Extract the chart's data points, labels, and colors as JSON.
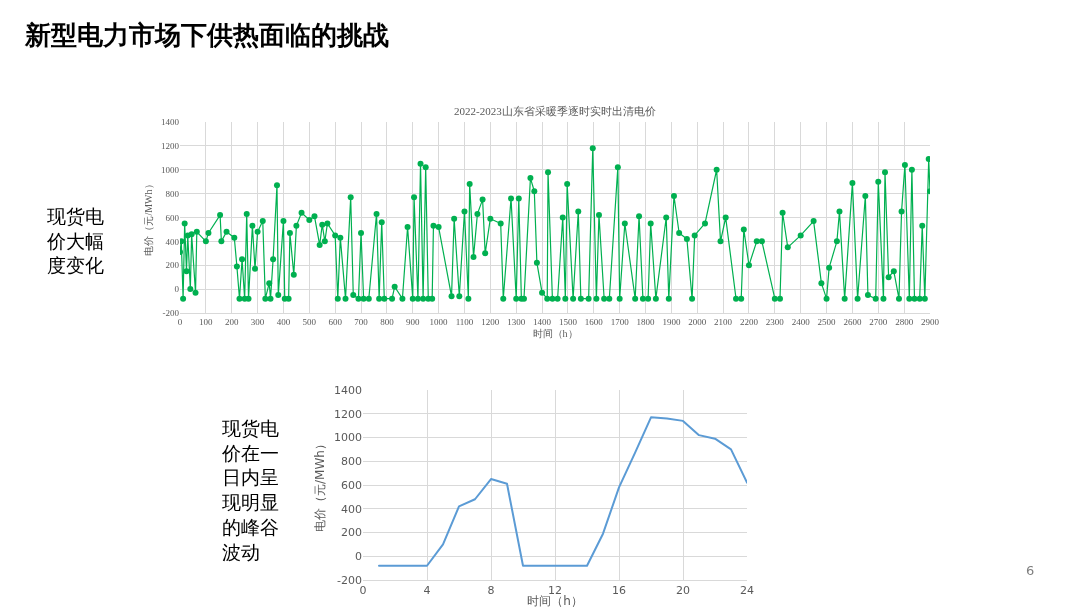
{
  "chart_data": [
    {
      "type": "line",
      "title": "2022-2023山东省采暖季逐时实时出清电价",
      "xlabel": "时间（h）",
      "ylabel": "电价（元/MWh）",
      "annotations": [
        "新型电力市场下供热面临的挑战",
        "现货电价大幅度变化"
      ],
      "series": [
        {
          "color": "#00b050",
          "x": [
            0,
            5,
            12,
            18,
            25,
            30,
            40,
            45,
            60,
            65,
            100,
            110,
            155,
            160,
            180,
            210,
            220,
            230,
            240,
            250,
            258,
            265,
            280,
            290,
            300,
            320,
            330,
            345,
            350,
            360,
            375,
            380,
            400,
            405,
            420,
            425,
            440,
            450,
            470,
            500,
            520,
            540,
            550,
            560,
            570,
            600,
            610,
            620,
            640,
            660,
            670,
            690,
            700,
            710,
            730,
            760,
            770,
            780,
            790,
            820,
            830,
            860,
            880,
            900,
            905,
            920,
            930,
            940,
            950,
            960,
            975,
            980,
            1000,
            1050,
            1060,
            1080,
            1100,
            1115,
            1120,
            1135,
            1150,
            1170,
            1180,
            1200,
            1240,
            1250,
            1280,
            1300,
            1310,
            1320,
            1330,
            1355,
            1370,
            1380,
            1400,
            1420,
            1423,
            1440,
            1460,
            1480,
            1490,
            1497,
            1520,
            1540,
            1550,
            1580,
            1596,
            1610,
            1620,
            1640,
            1660,
            1693,
            1700,
            1720,
            1760,
            1775,
            1790,
            1810,
            1820,
            1840,
            1880,
            1890,
            1910,
            1930,
            1960,
            1980,
            1990,
            2030,
            2075,
            2090,
            2110,
            2150,
            2170,
            2180,
            2200,
            2230,
            2250,
            2300,
            2320,
            2330,
            2350,
            2400,
            2450,
            2480,
            2500,
            2510,
            2540,
            2550,
            2570,
            2600,
            2620,
            2650,
            2660,
            2690,
            2700,
            2720,
            2726,
            2740,
            2760,
            2780,
            2790,
            2803,
            2820,
            2830,
            2840,
            2860,
            2870,
            2880,
            2895,
            2900
          ],
          "values": [
            310,
            400,
            -80,
            550,
            150,
            450,
            0,
            460,
            -30,
            480,
            400,
            470,
            620,
            400,
            480,
            430,
            190,
            -80,
            250,
            -80,
            630,
            -80,
            530,
            170,
            480,
            570,
            -80,
            50,
            -80,
            250,
            870,
            -50,
            570,
            -80,
            -80,
            470,
            120,
            530,
            640,
            580,
            610,
            370,
            540,
            400,
            550,
            450,
            -80,
            430,
            -80,
            770,
            -50,
            -80,
            470,
            -80,
            -80,
            630,
            -80,
            560,
            -80,
            -80,
            20,
            -80,
            520,
            -80,
            770,
            -80,
            1050,
            -80,
            1020,
            -80,
            -80,
            530,
            520,
            -60,
            590,
            -60,
            650,
            -80,
            880,
            270,
            630,
            750,
            300,
            590,
            550,
            -80,
            760,
            -80,
            760,
            -80,
            -80,
            930,
            820,
            220,
            -30,
            -80,
            980,
            -80,
            -80,
            600,
            -80,
            880,
            -80,
            650,
            -80,
            -80,
            1180,
            -80,
            620,
            -80,
            -80,
            1020,
            -80,
            550,
            -80,
            610,
            -80,
            -80,
            550,
            -80,
            600,
            -80,
            780,
            470,
            420,
            -80,
            450,
            550,
            1000,
            400,
            600,
            -80,
            -80,
            500,
            200,
            400,
            400,
            -80,
            -80,
            640,
            350,
            450,
            570,
            50,
            -80,
            180,
            400,
            650,
            -80,
            890,
            -80,
            780,
            -50,
            -80,
            900,
            -80,
            980,
            100,
            150,
            -80,
            650,
            1040,
            -80,
            1000,
            -80,
            -80,
            530,
            -80,
            1090,
            820
          ]
        }
      ],
      "xlim": [
        0,
        2900
      ],
      "xticks": [
        0,
        100,
        200,
        300,
        400,
        500,
        600,
        700,
        800,
        900,
        1000,
        1100,
        1200,
        1300,
        1400,
        1500,
        1600,
        1700,
        1800,
        1900,
        2000,
        2100,
        2200,
        2300,
        2400,
        2500,
        2600,
        2700,
        2800,
        2900
      ],
      "ylim": [
        -200,
        1400
      ],
      "yticks": [
        -200,
        0,
        200,
        400,
        600,
        800,
        1000,
        1200,
        1400
      ],
      "grid": true,
      "marker": "circle",
      "line_style": "solid"
    },
    {
      "type": "line",
      "xlabel": "时间（h）",
      "ylabel": "电价（元/MWh）",
      "annotations": [
        "现货电价在一日内呈现明显的峰谷波动",
        "6"
      ],
      "x": [
        1,
        2,
        3,
        4,
        5,
        6,
        7,
        8,
        9,
        10,
        11,
        12,
        13,
        14,
        15,
        16,
        17,
        18,
        19,
        20,
        21,
        22,
        23,
        24
      ],
      "series": [
        {
          "color": "#5b9bd5",
          "values": [
            -80,
            -80,
            -80,
            -80,
            100,
            420,
            480,
            650,
            610,
            -80,
            -80,
            -80,
            -80,
            -80,
            190,
            580,
            870,
            1170,
            1160,
            1140,
            1020,
            990,
            900,
            620
          ]
        }
      ],
      "xlim": [
        0,
        24
      ],
      "xticks": [
        0,
        4,
        8,
        12,
        16,
        20,
        24
      ],
      "ylim": [
        -200,
        1400
      ],
      "yticks": [
        -200,
        0,
        200,
        400,
        600,
        800,
        1000,
        1200,
        1400
      ],
      "grid": true,
      "marker": "none",
      "line_style": "solid"
    }
  ]
}
